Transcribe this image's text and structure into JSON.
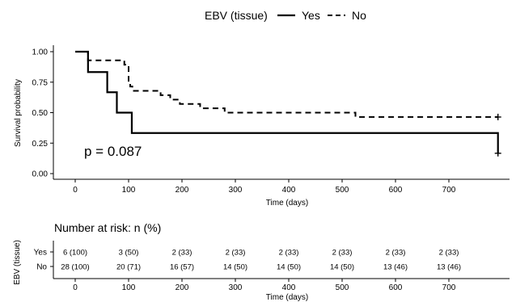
{
  "chart_data": {
    "type": "line",
    "subtype": "kaplan-meier",
    "legend": {
      "title": "EBV (tissue)",
      "placement": "top",
      "entries": [
        "Yes",
        "No"
      ]
    },
    "ylabel": "Survival probability",
    "xlabel": "Time (days)",
    "xlim": [
      -40,
      800
    ],
    "ylim": [
      0,
      1
    ],
    "xticks": [
      0,
      100,
      200,
      300,
      400,
      500,
      600,
      700
    ],
    "xtick_labels": [
      "0",
      "100",
      "200",
      "300",
      "400",
      "500",
      "600",
      "700"
    ],
    "yticks": [
      0,
      0.25,
      0.5,
      0.75,
      1.0
    ],
    "ytick_labels": [
      "0.00",
      "0.25",
      "0.50",
      "0.75",
      "1.00"
    ],
    "annotation": "p = 0.087",
    "series": [
      {
        "name": "Yes",
        "style": "solid",
        "steps": [
          [
            0,
            1.0
          ],
          [
            24,
            0.833
          ],
          [
            60,
            0.667
          ],
          [
            78,
            0.5
          ],
          [
            106,
            0.333
          ],
          [
            792,
            0.333
          ],
          [
            792,
            0.167
          ]
        ],
        "censored": [
          [
            792,
            0.167
          ]
        ]
      },
      {
        "name": "No",
        "style": "dashed",
        "steps": [
          [
            0,
            1.0
          ],
          [
            24,
            0.929
          ],
          [
            92,
            0.893
          ],
          [
            100,
            0.75
          ],
          [
            103,
            0.714
          ],
          [
            107,
            0.679
          ],
          [
            160,
            0.643
          ],
          [
            178,
            0.607
          ],
          [
            196,
            0.571
          ],
          [
            234,
            0.536
          ],
          [
            280,
            0.5
          ],
          [
            525,
            0.464
          ],
          [
            792,
            0.464
          ]
        ],
        "censored": [
          [
            792,
            0.464
          ]
        ]
      }
    ],
    "risk_table": {
      "title": "Number at risk: n (%)",
      "ylabel": "EBV (tissue)",
      "xlabel": "Time (days)",
      "rows": [
        {
          "name": "Yes",
          "values": [
            "6 (100)",
            "3 (50)",
            "2 (33)",
            "2 (33)",
            "2 (33)",
            "2 (33)",
            "2 (33)",
            "2 (33)"
          ]
        },
        {
          "name": "No",
          "values": [
            "28 (100)",
            "20 (71)",
            "16 (57)",
            "14 (50)",
            "14 (50)",
            "14 (50)",
            "13 (46)",
            "13 (46)"
          ]
        }
      ]
    },
    "colors": {
      "line": "#000000"
    }
  }
}
